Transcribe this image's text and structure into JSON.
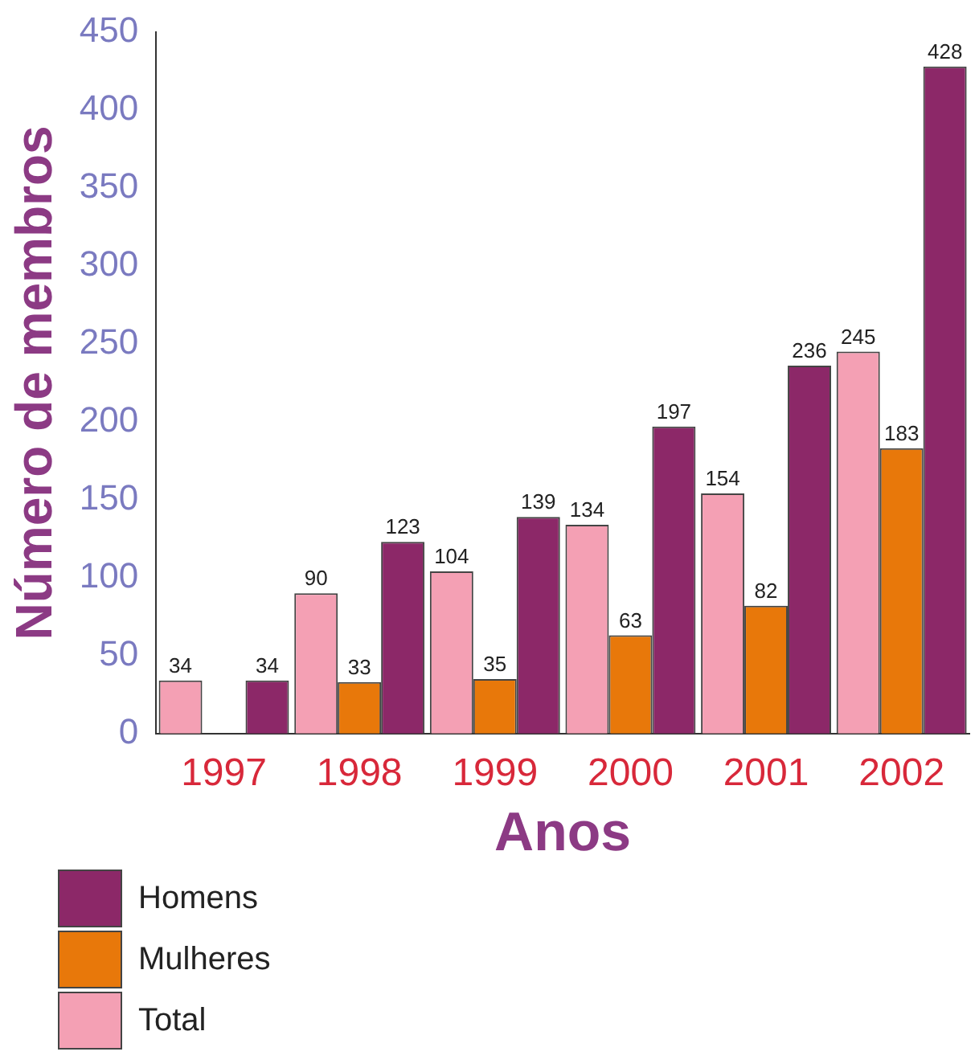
{
  "chart_data": {
    "type": "bar",
    "xlabel": "Anos",
    "ylabel": "Número de membros",
    "categories": [
      "1997",
      "1998",
      "1999",
      "2000",
      "2001",
      "2002"
    ],
    "series": [
      {
        "name": "Total",
        "color": "#f4a0b4",
        "values": [
          34,
          90,
          104,
          134,
          154,
          245
        ]
      },
      {
        "name": "Mulheres",
        "color": "#e8780a",
        "values": [
          null,
          33,
          35,
          63,
          82,
          183
        ]
      },
      {
        "name": "Homens",
        "color": "#8c2868",
        "values": [
          34,
          123,
          139,
          197,
          236,
          428
        ]
      }
    ],
    "ylim": [
      0,
      450
    ],
    "yticks": [
      0,
      50,
      100,
      150,
      200,
      250,
      300,
      350,
      400,
      450
    ],
    "grid": false,
    "legend": "bottom left",
    "data_labels": true
  }
}
